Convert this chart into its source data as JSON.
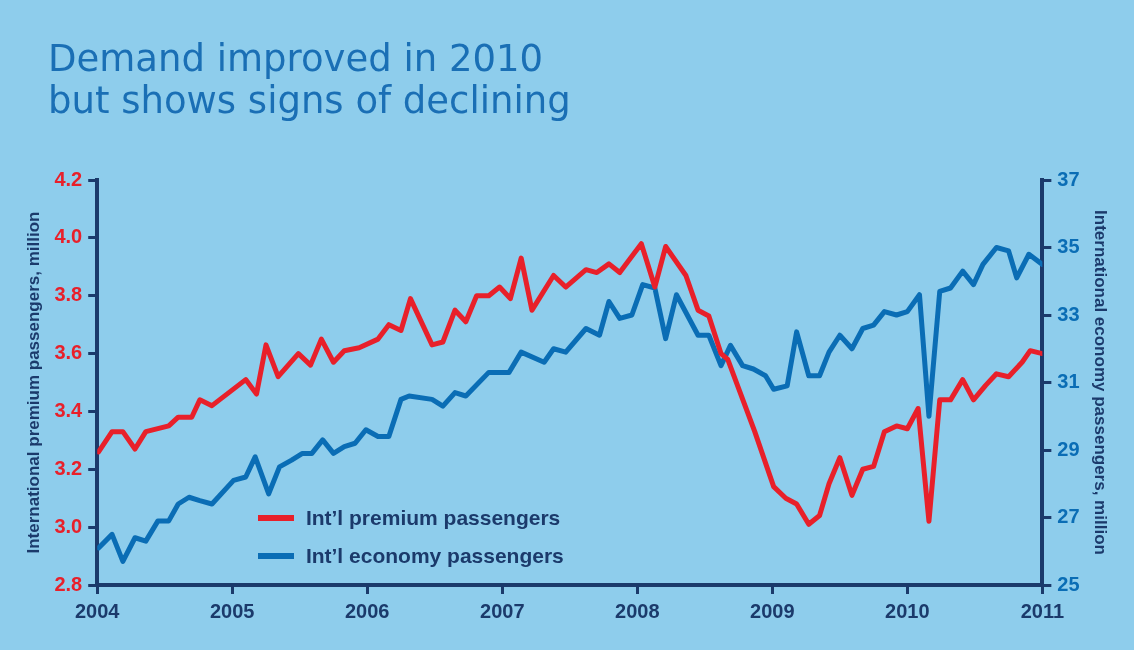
{
  "chart_data": {
    "type": "line",
    "title": "Demand improved in 2010\nbut shows signs of declining",
    "ylabel": "International premium passengers, million",
    "y2label": "International economy passengers, million",
    "xlim": [
      2004,
      2011
    ],
    "xticks": [
      2004,
      2005,
      2006,
      2007,
      2008,
      2009,
      2010,
      2011
    ],
    "ylim": [
      2.8,
      4.2
    ],
    "yticks": [
      2.8,
      {
        "value": 3,
        "label": "3.0"
      },
      3.2,
      3.4,
      3.6,
      3.8,
      {
        "value": 4,
        "label": "4.0"
      },
      4.2
    ],
    "y2lim": [
      25,
      37
    ],
    "y2ticks": [
      25,
      27,
      29,
      31,
      33,
      35,
      37
    ],
    "grid": false,
    "legend": "bottom left",
    "marker": "none",
    "line_style": "solid",
    "series": [
      {
        "name": "Int’l premium passengers",
        "color": "#e8202a",
        "axis": "y",
        "x": [
          2004.01,
          2004.11,
          2004.19,
          2004.28,
          2004.36,
          2004.53,
          2004.6,
          2004.7,
          2004.76,
          2004.85,
          2005.1,
          2005.18,
          2005.25,
          2005.34,
          2005.49,
          2005.58,
          2005.66,
          2005.75,
          2005.83,
          2005.94,
          2006.08,
          2006.16,
          2006.25,
          2006.32,
          2006.48,
          2006.56,
          2006.65,
          2006.73,
          2006.81,
          2006.9,
          2006.98,
          2007.06,
          2007.14,
          2007.22,
          2007.38,
          2007.47,
          2007.62,
          2007.7,
          2007.79,
          2007.87,
          2008.03,
          2008.13,
          2008.21,
          2008.36,
          2008.45,
          2008.53,
          2008.62,
          2008.67,
          2008.87,
          2009.01,
          2009.1,
          2009.18,
          2009.27,
          2009.35,
          2009.42,
          2009.5,
          2009.59,
          2009.67,
          2009.75,
          2009.83,
          2009.92,
          2010.0,
          2010.08,
          2010.16,
          2010.24,
          2010.32,
          2010.41,
          2010.49,
          2010.58,
          2010.66,
          2010.75,
          2010.85,
          2010.91,
          2011.0
        ],
        "values": [
          3.26,
          3.33,
          3.33,
          3.27,
          3.33,
          3.35,
          3.38,
          3.38,
          3.44,
          3.42,
          3.51,
          3.46,
          3.63,
          3.52,
          3.6,
          3.56,
          3.65,
          3.57,
          3.61,
          3.62,
          3.65,
          3.7,
          3.68,
          3.79,
          3.63,
          3.64,
          3.75,
          3.71,
          3.8,
          3.8,
          3.83,
          3.79,
          3.93,
          3.75,
          3.87,
          3.83,
          3.89,
          3.88,
          3.91,
          3.88,
          3.98,
          3.83,
          3.97,
          3.87,
          3.75,
          3.73,
          3.6,
          3.58,
          3.33,
          3.14,
          3.1,
          3.08,
          3.01,
          3.04,
          3.15,
          3.24,
          3.11,
          3.2,
          3.21,
          3.33,
          3.35,
          3.34,
          3.41,
          3.02,
          3.44,
          3.44,
          3.51,
          3.44,
          3.49,
          3.53,
          3.52,
          3.57,
          3.61,
          3.6
        ]
      },
      {
        "name": "Int’l economy passengers",
        "color": "#0a6db5",
        "axis": "y2",
        "x": [
          2004.01,
          2004.11,
          2004.19,
          2004.28,
          2004.36,
          2004.45,
          2004.53,
          2004.6,
          2004.68,
          2004.76,
          2004.85,
          2005.01,
          2005.1,
          2005.17,
          2005.27,
          2005.35,
          2005.44,
          2005.52,
          2005.59,
          2005.67,
          2005.75,
          2005.83,
          2005.91,
          2005.99,
          2006.08,
          2006.16,
          2006.25,
          2006.31,
          2006.48,
          2006.56,
          2006.65,
          2006.73,
          2006.9,
          2007.05,
          2007.14,
          2007.31,
          2007.38,
          2007.47,
          2007.62,
          2007.72,
          2007.79,
          2007.87,
          2007.96,
          2008.04,
          2008.13,
          2008.21,
          2008.29,
          2008.45,
          2008.53,
          2008.62,
          2008.69,
          2008.78,
          2008.86,
          2008.95,
          2009.01,
          2009.11,
          2009.18,
          2009.27,
          2009.35,
          2009.42,
          2009.5,
          2009.59,
          2009.67,
          2009.75,
          2009.83,
          2009.92,
          2010.0,
          2010.09,
          2010.16,
          2010.24,
          2010.32,
          2010.41,
          2010.49,
          2010.56,
          2010.66,
          2010.75,
          2010.81,
          2010.9,
          2011.0
        ],
        "values": [
          26.1,
          26.5,
          25.7,
          26.4,
          26.3,
          26.9,
          26.9,
          27.4,
          27.6,
          27.5,
          27.4,
          28.1,
          28.2,
          28.8,
          27.7,
          28.5,
          28.7,
          28.9,
          28.9,
          29.3,
          28.9,
          29.1,
          29.2,
          29.6,
          29.4,
          29.4,
          30.5,
          30.6,
          30.5,
          30.3,
          30.7,
          30.6,
          31.3,
          31.3,
          31.9,
          31.6,
          32.0,
          31.9,
          32.6,
          32.4,
          33.4,
          32.9,
          33.0,
          33.9,
          33.8,
          32.3,
          33.6,
          32.4,
          32.4,
          31.5,
          32.1,
          31.5,
          31.4,
          31.2,
          30.8,
          30.9,
          32.5,
          31.2,
          31.2,
          31.9,
          32.4,
          32.0,
          32.6,
          32.7,
          33.1,
          33.0,
          33.1,
          33.6,
          30.0,
          33.7,
          33.8,
          34.3,
          33.9,
          34.5,
          35.0,
          34.9,
          34.1,
          34.8,
          34.5
        ]
      }
    ]
  }
}
